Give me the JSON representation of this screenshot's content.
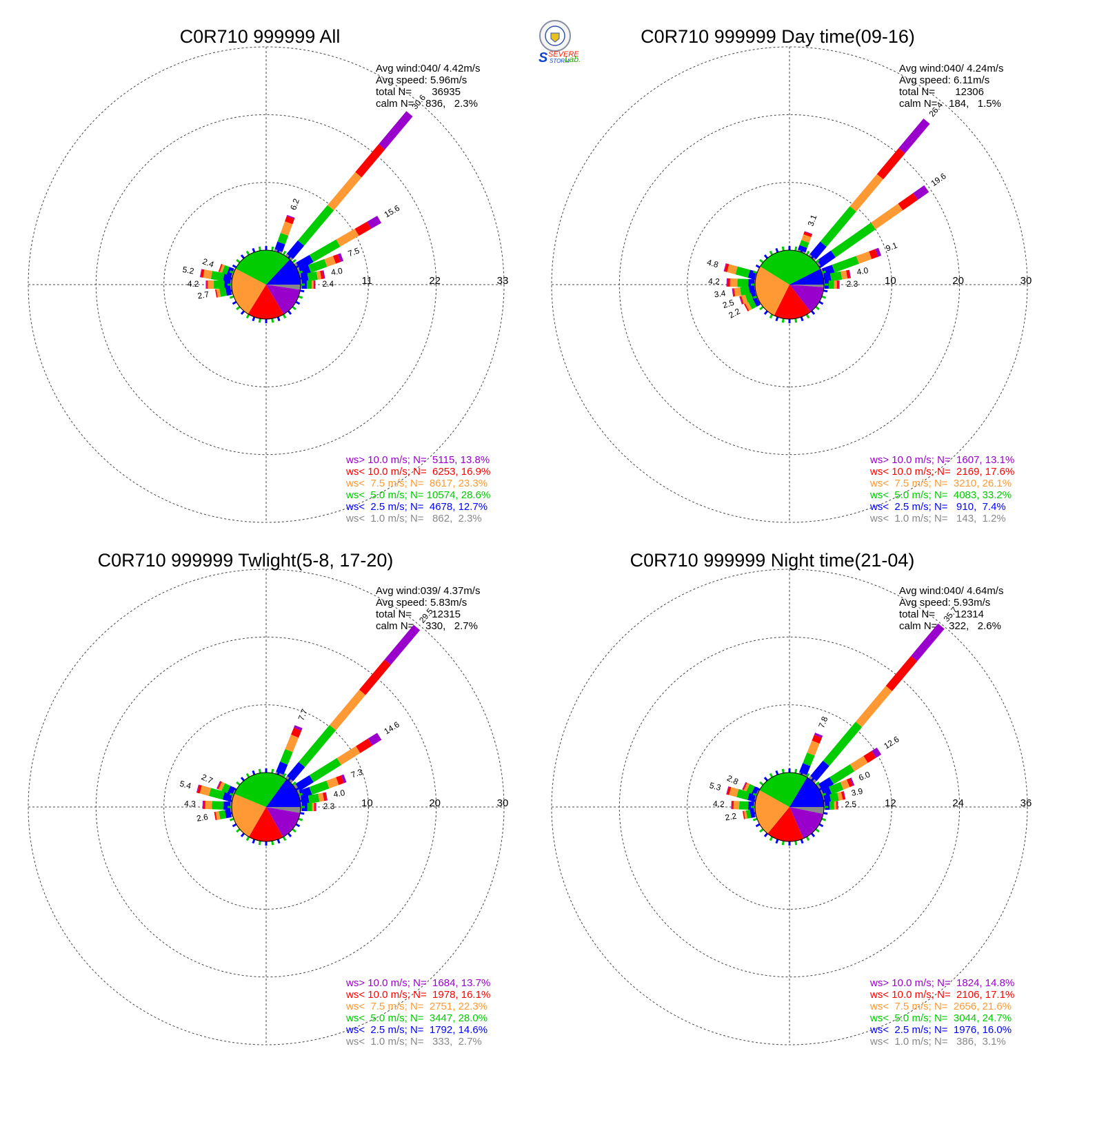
{
  "logo": {
    "line1": "SEVERE",
    "line2": "STORM",
    "line3": "Lab."
  },
  "colors": {
    "gt10": "#9900cc",
    "lt10": "#ff0000",
    "lt7_5": "#ff9933",
    "lt5": "#00cc00",
    "lt2_5": "#0000ff",
    "lt1": "#888888"
  },
  "chart_data": [
    {
      "type": "windrose",
      "title": "C0R710 999999 All",
      "stats": [
        "Avg wind:040/ 4.42m/s",
        "Avg speed: 5.96m/s",
        "total N=       36935",
        "calm N=    836,   2.3%"
      ],
      "rings": [
        11,
        22,
        33
      ],
      "rmax": 33,
      "pie": [
        {
          "key": "lt1",
          "pct": 2.3
        },
        {
          "key": "gt10",
          "pct": 13.8
        },
        {
          "key": "lt10",
          "pct": 16.9
        },
        {
          "key": "lt7_5",
          "pct": 23.3
        },
        {
          "key": "lt5",
          "pct": 28.6
        },
        {
          "key": "lt2_5",
          "pct": 12.7
        }
      ],
      "spokes": [
        {
          "dir": 20,
          "total": 6.2,
          "comp": [
            0.3,
            1.3,
            1.5,
            2.0,
            0.9,
            0.2
          ]
        },
        {
          "dir": 40,
          "total": 30.6,
          "comp": [
            0.4,
            2.8,
            7.5,
            7.0,
            5.9,
            7.0
          ]
        },
        {
          "dir": 60,
          "total": 15.6,
          "comp": [
            0.4,
            2.5,
            5.0,
            3.5,
            2.3,
            1.9
          ]
        },
        {
          "dir": 70,
          "total": 7.5,
          "comp": [
            0.3,
            1.6,
            2.8,
            1.5,
            0.8,
            0.5
          ]
        },
        {
          "dir": 80,
          "total": 4.0,
          "comp": [
            0.2,
            1.1,
            1.5,
            0.6,
            0.4,
            0.2
          ]
        },
        {
          "dir": 90,
          "total": 2.4,
          "comp": [
            0.2,
            0.8,
            0.8,
            0.3,
            0.2,
            0.1
          ]
        },
        {
          "dir": 280,
          "total": 5.2,
          "comp": [
            0.2,
            1.2,
            2.0,
            1.3,
            0.4,
            0.1
          ]
        },
        {
          "dir": 290,
          "total": 2.4,
          "comp": [
            0.2,
            0.8,
            0.8,
            0.4,
            0.2,
            0.0
          ]
        },
        {
          "dir": 270,
          "total": 4.2,
          "comp": [
            0.2,
            1.0,
            1.7,
            1.0,
            0.2,
            0.1
          ]
        },
        {
          "dir": 260,
          "total": 2.7,
          "comp": [
            0.2,
            0.8,
            1.0,
            0.5,
            0.2,
            0.0
          ]
        }
      ],
      "spoke_labels": [
        "6.2",
        "30.6",
        "15.6",
        "7.5",
        "4.0",
        "2.4",
        "5.2",
        "2.4",
        "4.2",
        "2.7"
      ],
      "legend": [
        {
          "key": "gt10",
          "text": "ws> 10.0 m/s; N=  5115, 13.8%"
        },
        {
          "key": "lt10",
          "text": "ws< 10.0 m/s; N=  6253, 16.9%"
        },
        {
          "key": "lt7_5",
          "text": "ws<  7.5 m/s; N=  8617, 23.3%"
        },
        {
          "key": "lt5",
          "text": "ws<  5.0 m/s; N= 10574, 28.6%"
        },
        {
          "key": "lt2_5",
          "text": "ws<  2.5 m/s; N=  4678, 12.7%"
        },
        {
          "key": "lt1",
          "text": "ws<  1.0 m/s; N=   862,  2.3%"
        }
      ]
    },
    {
      "type": "windrose",
      "title": "C0R710 999999 Day time(09-16)",
      "stats": [
        "Avg wind:040/ 4.24m/s",
        "Avg speed: 6.11m/s",
        "total N=       12306",
        "calm N=    184,   1.5%"
      ],
      "rings": [
        10,
        20,
        30
      ],
      "rmax": 30,
      "pie": [
        {
          "key": "lt1",
          "pct": 1.2
        },
        {
          "key": "gt10",
          "pct": 13.1
        },
        {
          "key": "lt10",
          "pct": 17.6
        },
        {
          "key": "lt7_5",
          "pct": 26.1
        },
        {
          "key": "lt5",
          "pct": 33.2
        },
        {
          "key": "lt2_5",
          "pct": 7.4
        }
      ],
      "spokes": [
        {
          "dir": 20,
          "total": 3.1,
          "comp": [
            0.2,
            0.7,
            0.8,
            0.9,
            0.4,
            0.1
          ]
        },
        {
          "dir": 40,
          "total": 26.4,
          "comp": [
            0.3,
            2.4,
            6.8,
            6.2,
            5.0,
            5.7
          ]
        },
        {
          "dir": 55,
          "total": 19.6,
          "comp": [
            0.3,
            2.5,
            7.2,
            4.9,
            2.7,
            2.0
          ]
        },
        {
          "dir": 70,
          "total": 9.1,
          "comp": [
            0.2,
            1.6,
            3.8,
            2.0,
            1.0,
            0.5
          ]
        },
        {
          "dir": 80,
          "total": 4.0,
          "comp": [
            0.1,
            1.0,
            1.6,
            0.8,
            0.4,
            0.1
          ]
        },
        {
          "dir": 90,
          "total": 2.3,
          "comp": [
            0.1,
            0.6,
            0.8,
            0.4,
            0.3,
            0.1
          ]
        },
        {
          "dir": 285,
          "total": 4.8,
          "comp": [
            0.1,
            1.0,
            1.9,
            1.3,
            0.4,
            0.1
          ]
        },
        {
          "dir": 272,
          "total": 4.2,
          "comp": [
            0.1,
            0.9,
            1.6,
            1.1,
            0.4,
            0.1
          ]
        },
        {
          "dir": 262,
          "total": 3.4,
          "comp": [
            0.1,
            0.8,
            1.3,
            0.9,
            0.2,
            0.1
          ]
        },
        {
          "dir": 252,
          "total": 2.5,
          "comp": [
            0.1,
            0.6,
            0.9,
            0.6,
            0.2,
            0.1
          ]
        },
        {
          "dir": 242,
          "total": 2.2,
          "comp": [
            0.1,
            0.6,
            0.8,
            0.5,
            0.2,
            0.0
          ]
        }
      ],
      "spoke_labels": [
        "3.1",
        "26.4",
        "19.6",
        "9.1",
        "4.0",
        "2.3",
        "4.8",
        "4.2",
        "3.4",
        "2.5",
        "2.2"
      ],
      "legend": [
        {
          "key": "gt10",
          "text": "ws> 10.0 m/s; N=  1607, 13.1%"
        },
        {
          "key": "lt10",
          "text": "ws< 10.0 m/s; N=  2169, 17.6%"
        },
        {
          "key": "lt7_5",
          "text": "ws<  7.5 m/s; N=  3210, 26.1%"
        },
        {
          "key": "lt5",
          "text": "ws<  5.0 m/s; N=  4083, 33.2%"
        },
        {
          "key": "lt2_5",
          "text": "ws<  2.5 m/s; N=   910,  7.4%"
        },
        {
          "key": "lt1",
          "text": "ws<  1.0 m/s; N=   143,  1.2%"
        }
      ]
    },
    {
      "type": "windrose",
      "title": "C0R710 999999 Twlight(5-8, 17-20)",
      "stats": [
        "Avg wind:039/ 4.37m/s",
        "Avg speed: 5.83m/s",
        "total N=       12315",
        "calm N=    330,   2.7%"
      ],
      "rings": [
        10,
        20,
        30
      ],
      "rmax": 30,
      "pie": [
        {
          "key": "lt1",
          "pct": 2.7
        },
        {
          "key": "gt10",
          "pct": 13.7
        },
        {
          "key": "lt10",
          "pct": 16.1
        },
        {
          "key": "lt7_5",
          "pct": 22.3
        },
        {
          "key": "lt5",
          "pct": 28.0
        },
        {
          "key": "lt2_5",
          "pct": 14.6
        }
      ],
      "spokes": [
        {
          "dir": 22,
          "total": 7.7,
          "comp": [
            0.3,
            1.6,
            2.0,
            2.3,
            1.1,
            0.4
          ]
        },
        {
          "dir": 40,
          "total": 29.5,
          "comp": [
            0.4,
            2.7,
            7.1,
            6.8,
            5.8,
            6.7
          ]
        },
        {
          "dir": 58,
          "total": 14.6,
          "comp": [
            0.4,
            2.4,
            4.8,
            3.3,
            2.1,
            1.6
          ]
        },
        {
          "dir": 70,
          "total": 7.3,
          "comp": [
            0.3,
            1.6,
            2.7,
            1.5,
            0.8,
            0.4
          ]
        },
        {
          "dir": 80,
          "total": 4.0,
          "comp": [
            0.2,
            1.1,
            1.5,
            0.7,
            0.4,
            0.1
          ]
        },
        {
          "dir": 90,
          "total": 2.3,
          "comp": [
            0.2,
            0.8,
            0.7,
            0.3,
            0.2,
            0.1
          ]
        },
        {
          "dir": 285,
          "total": 5.4,
          "comp": [
            0.2,
            1.2,
            2.1,
            1.4,
            0.4,
            0.1
          ]
        },
        {
          "dir": 295,
          "total": 2.7,
          "comp": [
            0.2,
            0.8,
            0.9,
            0.5,
            0.2,
            0.1
          ]
        },
        {
          "dir": 272,
          "total": 4.3,
          "comp": [
            0.2,
            1.0,
            1.7,
            1.0,
            0.3,
            0.1
          ]
        },
        {
          "dir": 260,
          "total": 2.6,
          "comp": [
            0.2,
            0.8,
            0.9,
            0.5,
            0.2,
            0.0
          ]
        }
      ],
      "spoke_labels": [
        "7.7",
        "29.5",
        "14.6",
        "7.3",
        "4.0",
        "2.3",
        "5.4",
        "2.7",
        "4.3",
        "2.6"
      ],
      "legend": [
        {
          "key": "gt10",
          "text": "ws> 10.0 m/s; N=  1684, 13.7%"
        },
        {
          "key": "lt10",
          "text": "ws< 10.0 m/s; N=  1978, 16.1%"
        },
        {
          "key": "lt7_5",
          "text": "ws<  7.5 m/s; N=  2751, 22.3%"
        },
        {
          "key": "lt5",
          "text": "ws<  5.0 m/s; N=  3447, 28.0%"
        },
        {
          "key": "lt2_5",
          "text": "ws<  2.5 m/s; N=  1792, 14.6%"
        },
        {
          "key": "lt1",
          "text": "ws<  1.0 m/s; N=   333,  2.7%"
        }
      ]
    },
    {
      "type": "windrose",
      "title": "C0R710 999999 Night time(21-04)",
      "stats": [
        "Avg wind:040/ 4.64m/s",
        "Avg speed: 5.93m/s",
        "total N=       12314",
        "calm N=    322,   2.6%"
      ],
      "rings": [
        12,
        24,
        36
      ],
      "rmax": 36,
      "pie": [
        {
          "key": "lt1",
          "pct": 3.1
        },
        {
          "key": "gt10",
          "pct": 14.8
        },
        {
          "key": "lt10",
          "pct": 17.1
        },
        {
          "key": "lt7_5",
          "pct": 21.6
        },
        {
          "key": "lt5",
          "pct": 24.7
        },
        {
          "key": "lt2_5",
          "pct": 16.0
        }
      ],
      "spokes": [
        {
          "dir": 22,
          "total": 7.8,
          "comp": [
            0.3,
            1.7,
            2.0,
            2.3,
            1.1,
            0.4
          ]
        },
        {
          "dir": 40,
          "total": 35.7,
          "comp": [
            0.5,
            3.5,
            9.0,
            8.3,
            6.9,
            7.5
          ]
        },
        {
          "dir": 58,
          "total": 12.6,
          "comp": [
            0.4,
            2.3,
            4.3,
            2.8,
            1.7,
            1.1
          ]
        },
        {
          "dir": 68,
          "total": 6.0,
          "comp": [
            0.3,
            1.4,
            2.2,
            1.2,
            0.6,
            0.3
          ]
        },
        {
          "dir": 78,
          "total": 3.9,
          "comp": [
            0.2,
            1.1,
            1.4,
            0.7,
            0.4,
            0.1
          ]
        },
        {
          "dir": 88,
          "total": 2.5,
          "comp": [
            0.2,
            0.8,
            0.8,
            0.4,
            0.2,
            0.1
          ]
        },
        {
          "dir": 285,
          "total": 5.3,
          "comp": [
            0.2,
            1.2,
            2.0,
            1.4,
            0.4,
            0.1
          ]
        },
        {
          "dir": 295,
          "total": 2.8,
          "comp": [
            0.2,
            0.8,
            1.0,
            0.5,
            0.2,
            0.1
          ]
        },
        {
          "dir": 272,
          "total": 4.2,
          "comp": [
            0.2,
            1.0,
            1.6,
            1.0,
            0.3,
            0.1
          ]
        },
        {
          "dir": 260,
          "total": 2.2,
          "comp": [
            0.2,
            0.7,
            0.7,
            0.4,
            0.2,
            0.0
          ]
        }
      ],
      "spoke_labels": [
        "7.8",
        "35.7",
        "12.6",
        "6.0",
        "3.9",
        "2.5",
        "5.3",
        "2.8",
        "4.2",
        "2.2"
      ],
      "legend": [
        {
          "key": "gt10",
          "text": "ws> 10.0 m/s; N=  1824, 14.8%"
        },
        {
          "key": "lt10",
          "text": "ws< 10.0 m/s; N=  2106, 17.1%"
        },
        {
          "key": "lt7_5",
          "text": "ws<  7.5 m/s; N=  2656, 21.6%"
        },
        {
          "key": "lt5",
          "text": "ws<  5.0 m/s; N=  3044, 24.7%"
        },
        {
          "key": "lt2_5",
          "text": "ws<  2.5 m/s; N=  1976, 16.0%"
        },
        {
          "key": "lt1",
          "text": "ws<  1.0 m/s; N=   386,  3.1%"
        }
      ]
    }
  ]
}
